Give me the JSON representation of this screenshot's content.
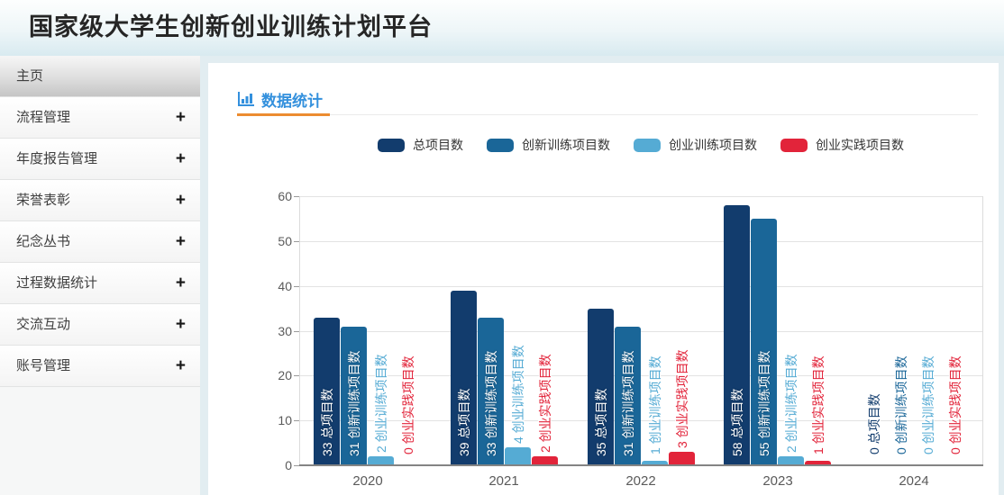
{
  "header": {
    "title": "国家级大学生创新创业训练计划平台"
  },
  "sidebar": {
    "expand_glyph": "+",
    "items": [
      {
        "label": "主页",
        "expandable": false,
        "active": true
      },
      {
        "label": "流程管理",
        "expandable": true,
        "active": false
      },
      {
        "label": "年度报告管理",
        "expandable": true,
        "active": false
      },
      {
        "label": "荣誉表彰",
        "expandable": true,
        "active": false
      },
      {
        "label": "纪念丛书",
        "expandable": true,
        "active": false
      },
      {
        "label": "过程数据统计",
        "expandable": true,
        "active": false
      },
      {
        "label": "交流互动",
        "expandable": true,
        "active": false
      },
      {
        "label": "账号管理",
        "expandable": true,
        "active": false
      }
    ]
  },
  "main": {
    "section_title": "数据统计",
    "title_color": "#3390dd",
    "underline_color": "#ec8c30"
  },
  "chart_data": {
    "type": "bar",
    "title": "",
    "xlabel": "",
    "ylabel": "",
    "categories": [
      "2020",
      "2021",
      "2022",
      "2023",
      "2024"
    ],
    "series": [
      {
        "name": "总项目数",
        "color": "#123c6d",
        "values": [
          33,
          39,
          35,
          58,
          0
        ]
      },
      {
        "name": "创新训练项目数",
        "color": "#1a6698",
        "values": [
          31,
          33,
          31,
          55,
          0
        ]
      },
      {
        "name": "创业训练项目数",
        "color": "#55abd4",
        "values": [
          2,
          4,
          1,
          2,
          0
        ]
      },
      {
        "name": "创业实践项目数",
        "color": "#e2243a",
        "values": [
          0,
          2,
          3,
          1,
          0
        ]
      }
    ],
    "ylim": [
      0,
      60
    ],
    "yticks": [
      0,
      10,
      20,
      30,
      40,
      50,
      60
    ],
    "grid": true,
    "legend_position": "top",
    "bar_label_format": "{value} {seriesName}",
    "bar_label_rotation": 90
  }
}
